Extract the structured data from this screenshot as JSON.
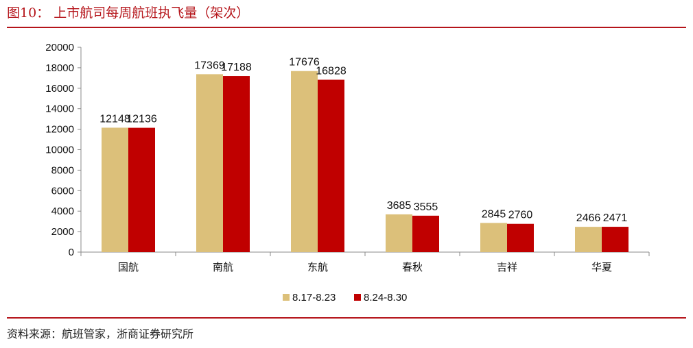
{
  "header": {
    "title": "图10：  上市航司每周航班执飞量（架次）"
  },
  "footer": {
    "source": "资料来源：航班管家，浙商证券研究所"
  },
  "colors": {
    "accent": "#b5141a",
    "series1": "#dcc07a",
    "series2": "#c00000"
  },
  "chart_data": {
    "type": "bar",
    "categories": [
      "国航",
      "南航",
      "东航",
      "春秋",
      "吉祥",
      "华夏"
    ],
    "series": [
      {
        "name": "8.17-8.23",
        "values": [
          12148,
          17369,
          17676,
          3685,
          2845,
          2466
        ]
      },
      {
        "name": "8.24-8.30",
        "values": [
          12136,
          17188,
          16828,
          3555,
          2760,
          2471
        ]
      }
    ],
    "ylim": [
      0,
      20000
    ],
    "yticks": [
      0,
      2000,
      4000,
      6000,
      8000,
      10000,
      12000,
      14000,
      16000,
      18000,
      20000
    ],
    "grid": false,
    "legend": "bottom-center"
  }
}
